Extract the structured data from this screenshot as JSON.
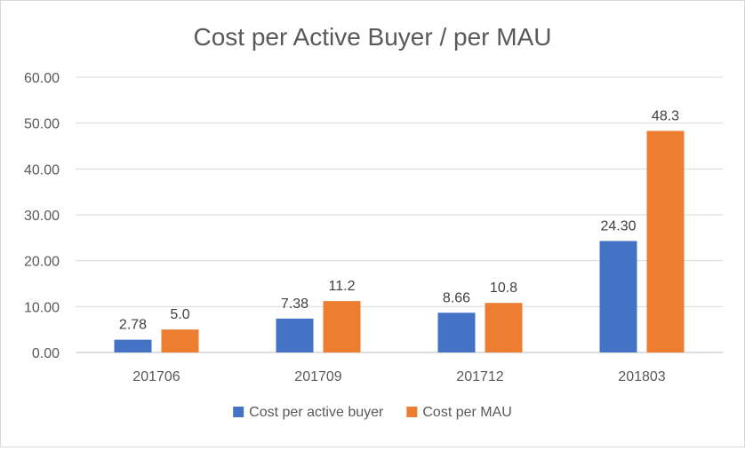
{
  "chart_data": {
    "type": "bar",
    "title": "Cost per Active Buyer / per MAU",
    "categories": [
      "201706",
      "201709",
      "201712",
      "201803"
    ],
    "series": [
      {
        "name": "Cost per active buyer",
        "color": "#4472c4",
        "values": [
          2.78,
          7.38,
          8.66,
          24.3
        ],
        "labels": [
          "2.78",
          "7.38",
          "8.66",
          "24.30"
        ]
      },
      {
        "name": "Cost per MAU",
        "color": "#ed7d31",
        "values": [
          5.0,
          11.2,
          10.8,
          48.3
        ],
        "labels": [
          "5.0",
          "11.2",
          "10.8",
          "48.3"
        ]
      }
    ],
    "y_ticks": [
      "0.00",
      "10.00",
      "20.00",
      "30.00",
      "40.00",
      "50.00",
      "60.00"
    ],
    "ylim": [
      0,
      60
    ],
    "grid": true,
    "legend_position": "bottom",
    "xlabel": "",
    "ylabel": ""
  }
}
